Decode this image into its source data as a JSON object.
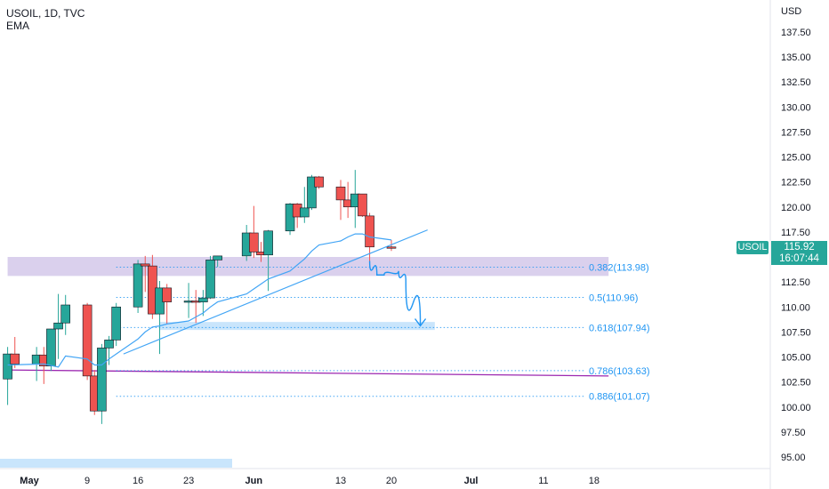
{
  "header": {
    "symbol_line": "USOIL, 1D, TVC",
    "indicator": "EMA"
  },
  "price_axis": {
    "currency": "USD"
  },
  "last_price": {
    "symbol": "USOIL",
    "value": "115.92",
    "countdown": "16:07:44"
  },
  "colors": {
    "up": "#26a69a",
    "down": "#ef5350",
    "ema": "#42a5f5",
    "fib": "#2196f3",
    "zone_purple": "#d1c4e9",
    "zone_blue": "#bbdefb",
    "level_line": "#9c27b0"
  },
  "chart_data": {
    "type": "candlestick",
    "title": "USOIL, 1D, TVC",
    "ylim": [
      94,
      141
    ],
    "y_ticks": [
      95,
      97.5,
      100,
      102.5,
      105,
      107.5,
      110,
      112.5,
      115,
      117.5,
      120,
      122.5,
      125,
      127.5,
      130,
      132.5,
      135,
      137.5
    ],
    "y_tick_labels": [
      "95.00",
      "97.50",
      "100.00",
      "102.50",
      "105.00",
      "107.50",
      "110.00",
      "112.50",
      "115.00",
      "117.50",
      "120.00",
      "122.50",
      "125.00",
      "127.50",
      "130.00",
      "132.50",
      "135.00",
      "137.50"
    ],
    "x_tick_labels": [
      "May",
      "9",
      "16",
      "23",
      "Jun",
      "13",
      "20",
      "Jul",
      "11",
      "18"
    ],
    "x_tick_dates": [
      "2022-05-01",
      "2022-05-09",
      "2022-05-16",
      "2022-05-23",
      "2022-06-01",
      "2022-06-13",
      "2022-06-20",
      "2022-07-01",
      "2022-07-11",
      "2022-07-18"
    ],
    "candles": [
      {
        "date": "2022-04-28",
        "o": 102.8,
        "h": 106.0,
        "l": 100.2,
        "c": 105.3
      },
      {
        "date": "2022-04-29",
        "o": 105.3,
        "h": 107.0,
        "l": 103.9,
        "c": 104.3
      },
      {
        "date": "2022-05-02",
        "o": 104.3,
        "h": 106.0,
        "l": 102.6,
        "c": 105.2
      },
      {
        "date": "2022-05-03",
        "o": 105.2,
        "h": 106.0,
        "l": 102.3,
        "c": 104.1
      },
      {
        "date": "2022-05-04",
        "o": 104.1,
        "h": 107.4,
        "l": 103.6,
        "c": 107.8
      },
      {
        "date": "2022-05-05",
        "o": 107.8,
        "h": 111.3,
        "l": 104.8,
        "c": 108.4
      },
      {
        "date": "2022-05-06",
        "o": 108.4,
        "h": 111.2,
        "l": 107.2,
        "c": 110.2
      },
      {
        "date": "2022-05-09",
        "o": 110.2,
        "h": 110.4,
        "l": 102.7,
        "c": 103.1
      },
      {
        "date": "2022-05-10",
        "o": 103.1,
        "h": 103.7,
        "l": 99.2,
        "c": 99.6
      },
      {
        "date": "2022-05-11",
        "o": 99.6,
        "h": 106.3,
        "l": 98.3,
        "c": 105.9
      },
      {
        "date": "2022-05-12",
        "o": 105.9,
        "h": 107.1,
        "l": 104.2,
        "c": 106.7
      },
      {
        "date": "2022-05-13",
        "o": 106.7,
        "h": 110.4,
        "l": 106.1,
        "c": 110.0
      },
      {
        "date": "2022-05-16",
        "o": 110.0,
        "h": 114.7,
        "l": 109.4,
        "c": 114.3
      },
      {
        "date": "2022-05-17",
        "o": 114.3,
        "h": 115.1,
        "l": 111.5,
        "c": 114.1
      },
      {
        "date": "2022-05-18",
        "o": 114.1,
        "h": 115.2,
        "l": 108.8,
        "c": 109.3
      },
      {
        "date": "2022-05-19",
        "o": 109.3,
        "h": 112.6,
        "l": 105.3,
        "c": 111.9
      },
      {
        "date": "2022-05-20",
        "o": 111.9,
        "h": 112.3,
        "l": 108.3,
        "c": 110.5
      },
      {
        "date": "2022-05-23",
        "o": 110.5,
        "h": 112.4,
        "l": 108.9,
        "c": 110.6
      },
      {
        "date": "2022-05-24",
        "o": 110.6,
        "h": 111.7,
        "l": 108.4,
        "c": 110.5
      },
      {
        "date": "2022-05-25",
        "o": 110.5,
        "h": 111.7,
        "l": 109.1,
        "c": 110.9
      },
      {
        "date": "2022-05-26",
        "o": 110.9,
        "h": 115.1,
        "l": 110.8,
        "c": 114.7
      },
      {
        "date": "2022-05-27",
        "o": 114.7,
        "h": 115.1,
        "l": 114.0,
        "c": 115.1
      },
      {
        "date": "2022-05-31",
        "o": 115.1,
        "h": 118.2,
        "l": 114.6,
        "c": 117.4
      },
      {
        "date": "2022-06-01",
        "o": 117.4,
        "h": 120.1,
        "l": 114.9,
        "c": 115.5
      },
      {
        "date": "2022-06-02",
        "o": 115.5,
        "h": 116.5,
        "l": 114.5,
        "c": 115.2
      },
      {
        "date": "2022-06-03",
        "o": 115.2,
        "h": 117.7,
        "l": 111.6,
        "c": 117.6
      },
      {
        "date": "2022-06-06",
        "o": 117.6,
        "h": 120.4,
        "l": 117.2,
        "c": 120.3
      },
      {
        "date": "2022-06-07",
        "o": 120.3,
        "h": 120.4,
        "l": 117.9,
        "c": 119.0
      },
      {
        "date": "2022-06-08",
        "o": 119.0,
        "h": 122.0,
        "l": 118.4,
        "c": 119.9
      },
      {
        "date": "2022-06-09",
        "o": 119.9,
        "h": 123.2,
        "l": 119.7,
        "c": 123.0
      },
      {
        "date": "2022-06-10",
        "o": 123.0,
        "h": 123.1,
        "l": 121.8,
        "c": 122.0
      },
      {
        "date": "2022-06-13",
        "o": 122.0,
        "h": 122.7,
        "l": 118.7,
        "c": 120.7
      },
      {
        "date": "2022-06-14",
        "o": 120.7,
        "h": 122.5,
        "l": 118.9,
        "c": 120.0
      },
      {
        "date": "2022-06-15",
        "o": 120.0,
        "h": 123.7,
        "l": 117.9,
        "c": 121.3
      },
      {
        "date": "2022-06-16",
        "o": 121.3,
        "h": 121.3,
        "l": 119.0,
        "c": 119.1
      },
      {
        "date": "2022-06-17",
        "o": 119.1,
        "h": 119.4,
        "l": 114.6,
        "c": 116.0
      },
      {
        "date": "2022-06-20",
        "o": 116.0,
        "h": 116.7,
        "l": 115.6,
        "c": 115.9
      }
    ],
    "ema_path": [
      {
        "date": "2022-04-28",
        "v": 104.2
      },
      {
        "date": "2022-05-03",
        "v": 104.3
      },
      {
        "date": "2022-05-05",
        "v": 104.0
      },
      {
        "date": "2022-05-06",
        "v": 105.1
      },
      {
        "date": "2022-05-09",
        "v": 104.8
      },
      {
        "date": "2022-05-10",
        "v": 104.2
      },
      {
        "date": "2022-05-11",
        "v": 104.2
      },
      {
        "date": "2022-05-12",
        "v": 104.8
      },
      {
        "date": "2022-05-13",
        "v": 105.3
      },
      {
        "date": "2022-05-16",
        "v": 106.8
      },
      {
        "date": "2022-05-17",
        "v": 107.5
      },
      {
        "date": "2022-05-18",
        "v": 108.0
      },
      {
        "date": "2022-05-19",
        "v": 108.1
      },
      {
        "date": "2022-05-20",
        "v": 108.3
      },
      {
        "date": "2022-05-23",
        "v": 108.6
      },
      {
        "date": "2022-05-24",
        "v": 109.0
      },
      {
        "date": "2022-05-25",
        "v": 109.4
      },
      {
        "date": "2022-05-26",
        "v": 110.0
      },
      {
        "date": "2022-05-27",
        "v": 110.5
      },
      {
        "date": "2022-05-31",
        "v": 111.3
      },
      {
        "date": "2022-06-01",
        "v": 111.8
      },
      {
        "date": "2022-06-02",
        "v": 112.3
      },
      {
        "date": "2022-06-03",
        "v": 112.8
      },
      {
        "date": "2022-06-06",
        "v": 113.6
      },
      {
        "date": "2022-06-07",
        "v": 114.2
      },
      {
        "date": "2022-06-08",
        "v": 114.8
      },
      {
        "date": "2022-06-09",
        "v": 115.6
      },
      {
        "date": "2022-06-10",
        "v": 116.2
      },
      {
        "date": "2022-06-13",
        "v": 116.6
      },
      {
        "date": "2022-06-14",
        "v": 117.0
      },
      {
        "date": "2022-06-15",
        "v": 117.3
      },
      {
        "date": "2022-06-16",
        "v": 117.3
      },
      {
        "date": "2022-06-17",
        "v": 117.0
      },
      {
        "date": "2022-06-20",
        "v": 116.7
      }
    ],
    "trendline": {
      "from": {
        "date": "2022-05-14",
        "v": 105.3
      },
      "to": {
        "date": "2022-06-25",
        "v": 117.7
      }
    },
    "horizontal_ray": {
      "from": {
        "date": "2022-04-28",
        "v": 103.7
      },
      "to": {
        "date": "2022-07-20",
        "v": 103.1
      }
    },
    "zones": [
      {
        "name": "resistance-zone",
        "from": "2022-04-28",
        "to": "2022-07-20",
        "top": 115.0,
        "bottom": 113.1
      },
      {
        "name": "target-zone",
        "from": "2022-05-19",
        "to": "2022-06-26",
        "top": 108.5,
        "bottom": 107.7
      }
    ],
    "fib_levels": [
      {
        "ratio": "0.382",
        "value": 113.98,
        "label": "0.382(113.98)",
        "from": "2022-05-13"
      },
      {
        "ratio": "0.5",
        "value": 110.96,
        "label": "0.5(110.96)",
        "from": "2022-05-13"
      },
      {
        "ratio": "0.618",
        "value": 107.94,
        "label": "0.618(107.94)",
        "from": "2022-05-13"
      },
      {
        "ratio": "0.786",
        "value": 103.63,
        "label": "0.786(103.63)",
        "from": "2022-05-13"
      },
      {
        "ratio": "0.886",
        "value": 101.07,
        "label": "0.886(101.07)",
        "from": "2022-05-13"
      }
    ],
    "forecast_path": [
      {
        "date": "2022-06-17",
        "v": 114.6
      },
      {
        "date": "2022-06-18",
        "v": 113.2
      },
      {
        "date": "2022-06-19",
        "v": 113.2
      },
      {
        "date": "2022-06-21",
        "v": 113.6
      },
      {
        "date": "2022-06-22",
        "v": 112.6
      },
      {
        "date": "2022-06-24",
        "v": 108.2
      }
    ]
  }
}
